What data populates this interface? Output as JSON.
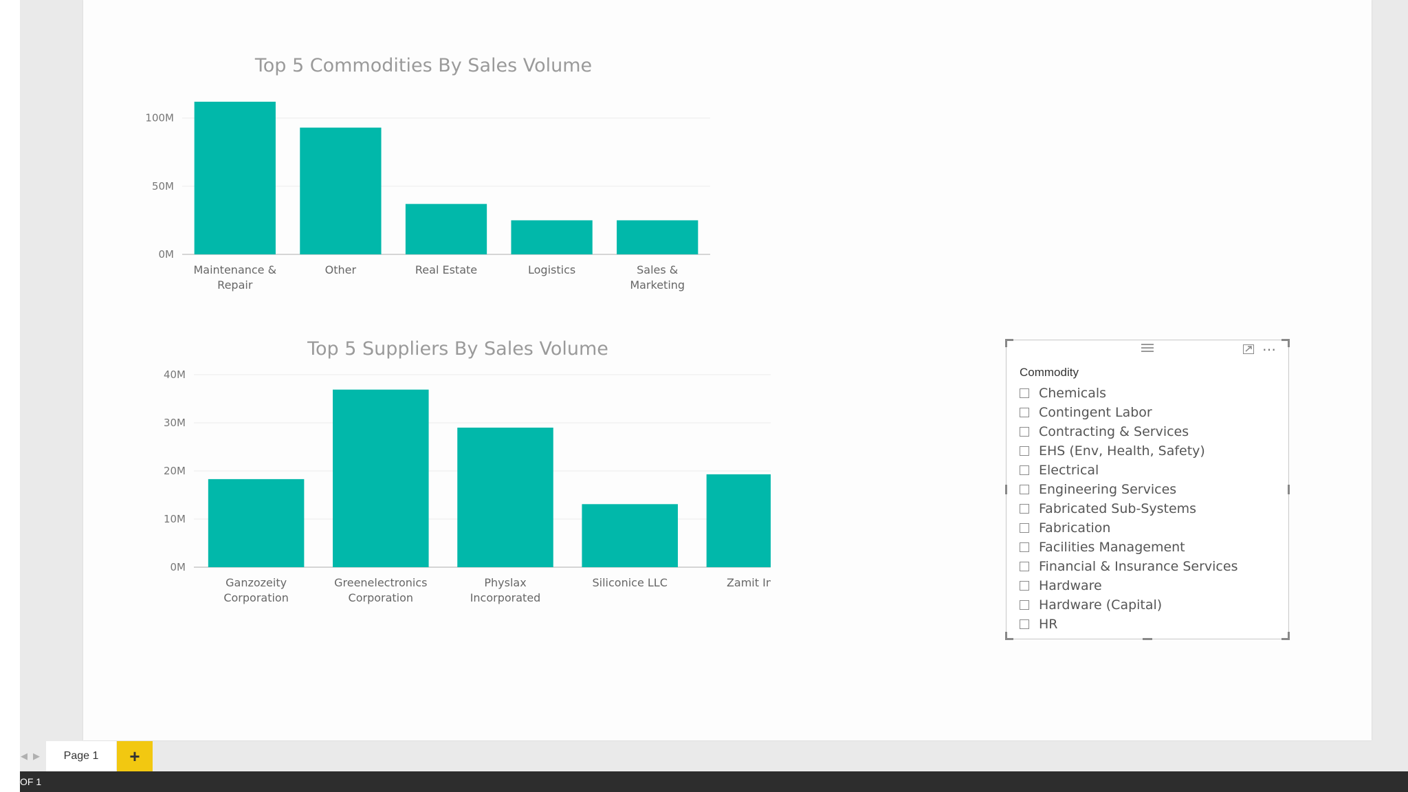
{
  "chart1": {
    "title": "Top 5 Commodities By Sales Volume",
    "color": "#01b8aa",
    "yticks": [
      "100M",
      "50M",
      "0M"
    ],
    "categories": [
      "Maintenance & Repair",
      "Other",
      "Real Estate",
      "Logistics",
      "Sales & Marketing"
    ]
  },
  "chart2": {
    "title": "Top 5 Suppliers By Sales Volume",
    "color": "#01b8aa",
    "yticks": [
      "40M",
      "30M",
      "20M",
      "10M",
      "0M"
    ],
    "categories": [
      "Ganzozeity Corporation",
      "Greenelectronics Corporation",
      "Physlax Incorporated",
      "Siliconice LLC",
      "Zamit Inc."
    ]
  },
  "chart_data": [
    {
      "type": "bar",
      "title": "Top 5 Commodities By Sales Volume",
      "categories": [
        "Maintenance & Repair",
        "Other",
        "Real Estate",
        "Logistics",
        "Sales & Marketing"
      ],
      "values": [
        112,
        93,
        37,
        25,
        25
      ],
      "unit": "M",
      "ylim": [
        0,
        115
      ],
      "yticks": [
        0,
        50,
        100
      ],
      "grid": true,
      "color": "#01b8aa"
    },
    {
      "type": "bar",
      "title": "Top 5 Suppliers By Sales Volume",
      "categories": [
        "Ganzozeity Corporation",
        "Greenelectronics Corporation",
        "Physlax Incorporated",
        "Siliconice LLC",
        "Zamit Inc."
      ],
      "values": [
        18.3,
        36.9,
        29,
        13.1,
        19.3
      ],
      "unit": "M",
      "ylim": [
        0,
        40
      ],
      "yticks": [
        0,
        10,
        20,
        30,
        40
      ],
      "grid": true,
      "color": "#01b8aa"
    }
  ],
  "slicer": {
    "header": "Commodity",
    "items": [
      "Chemicals",
      "Contingent Labor",
      "Contracting & Services",
      "EHS (Env, Health, Safety)",
      "Electrical",
      "Engineering Services",
      "Fabricated Sub-Systems",
      "Fabrication",
      "Facilities Management",
      "Financial & Insurance Services",
      "Hardware",
      "Hardware (Capital)",
      "HR"
    ],
    "icons": [
      "drag-handle-icon",
      "focus-mode-icon",
      "more-options-icon"
    ]
  },
  "tabs": {
    "page_label": "Page 1",
    "add_label": "+"
  },
  "status": {
    "text": "OF 1"
  }
}
